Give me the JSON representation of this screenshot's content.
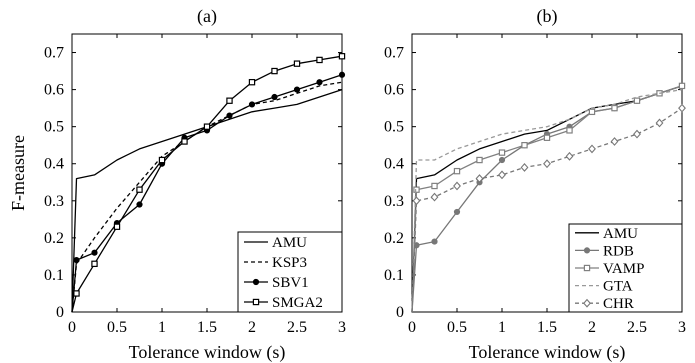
{
  "chart_data": [
    {
      "type": "line",
      "title": "(a)",
      "xlabel": "Tolerance window (s)",
      "ylabel": "F-measure",
      "xlim": [
        0,
        3
      ],
      "ylim": [
        0,
        0.75
      ],
      "xticks": [
        0,
        0.5,
        1,
        1.5,
        2,
        2.5,
        3
      ],
      "xtick_labels": [
        "0",
        "0.5",
        "1",
        "1.5",
        "2",
        "2.5",
        "3"
      ],
      "yticks": [
        0,
        0.1,
        0.2,
        0.3,
        0.4,
        0.5,
        0.6,
        0.7
      ],
      "ytick_labels": [
        "0",
        "0.1",
        "0.2",
        "0.3",
        "0.4",
        "0.5",
        "0.6",
        "0.7"
      ],
      "grid": false,
      "legend_position": "bottom-right",
      "series": [
        {
          "name": "AMU",
          "color": "#000000",
          "dash": "solid",
          "marker": "none",
          "x": [
            0,
            0.05,
            0.25,
            0.5,
            0.75,
            1.0,
            1.25,
            1.5,
            1.75,
            2.0,
            2.25,
            2.5,
            2.75,
            3.0
          ],
          "y": [
            0,
            0.36,
            0.37,
            0.41,
            0.44,
            0.46,
            0.48,
            0.5,
            0.52,
            0.54,
            0.55,
            0.56,
            0.58,
            0.6
          ]
        },
        {
          "name": "KSP3",
          "color": "#000000",
          "dash": "dashed",
          "marker": "none",
          "x": [
            0,
            0.05,
            0.25,
            0.5,
            0.75,
            1.0,
            1.25,
            1.5,
            1.75,
            2.0,
            2.25,
            2.5,
            2.75,
            3.0
          ],
          "y": [
            0,
            0.13,
            0.2,
            0.28,
            0.35,
            0.42,
            0.46,
            0.5,
            0.53,
            0.56,
            0.57,
            0.59,
            0.61,
            0.62
          ]
        },
        {
          "name": "SBV1",
          "color": "#000000",
          "dash": "solid",
          "marker": "dot",
          "x": [
            0,
            0.05,
            0.25,
            0.5,
            0.75,
            1.0,
            1.25,
            1.5,
            1.75,
            2.0,
            2.25,
            2.5,
            2.75,
            3.0
          ],
          "y": [
            0,
            0.14,
            0.16,
            0.24,
            0.29,
            0.4,
            0.47,
            0.49,
            0.53,
            0.56,
            0.58,
            0.6,
            0.62,
            0.64
          ]
        },
        {
          "name": "SMGA2",
          "color": "#000000",
          "dash": "solid",
          "marker": "square",
          "x": [
            0,
            0.05,
            0.25,
            0.5,
            0.75,
            1.0,
            1.25,
            1.5,
            1.75,
            2.0,
            2.25,
            2.5,
            2.75,
            3.0
          ],
          "y": [
            0,
            0.05,
            0.13,
            0.23,
            0.33,
            0.41,
            0.46,
            0.5,
            0.57,
            0.62,
            0.65,
            0.67,
            0.68,
            0.69
          ]
        }
      ]
    },
    {
      "type": "line",
      "title": "(b)",
      "xlabel": "Tolerance window (s)",
      "ylabel": "",
      "xlim": [
        0,
        3
      ],
      "ylim": [
        0,
        0.75
      ],
      "xticks": [
        0,
        0.5,
        1,
        1.5,
        2,
        2.5,
        3
      ],
      "xtick_labels": [
        "0",
        "0.5",
        "1",
        "1.5",
        "2",
        "2.5",
        "3"
      ],
      "yticks": [
        0,
        0.1,
        0.2,
        0.3,
        0.4,
        0.5,
        0.6,
        0.7
      ],
      "ytick_labels": [
        "0",
        "0.1",
        "0.2",
        "0.3",
        "0.4",
        "0.5",
        "0.6",
        "0.7"
      ],
      "grid": false,
      "legend_position": "bottom-right",
      "series": [
        {
          "name": "AMU",
          "color": "#000000",
          "dash": "solid",
          "marker": "none",
          "x": [
            0,
            0.05,
            0.25,
            0.5,
            0.75,
            1.0,
            1.25,
            1.5,
            1.75,
            2.0,
            2.25,
            2.5,
            2.75,
            3.0
          ],
          "y": [
            0,
            0.36,
            0.37,
            0.41,
            0.44,
            0.46,
            0.48,
            0.49,
            0.52,
            0.55,
            0.56,
            0.57,
            0.59,
            0.61
          ]
        },
        {
          "name": "RDB",
          "color": "#777777",
          "dash": "solid",
          "marker": "dot",
          "x": [
            0,
            0.05,
            0.25,
            0.5,
            0.75,
            1.0,
            1.25,
            1.5,
            1.75,
            2.0,
            2.25,
            2.5,
            2.75,
            3.0
          ],
          "y": [
            0,
            0.18,
            0.19,
            0.27,
            0.35,
            0.41,
            0.45,
            0.48,
            0.5,
            0.54,
            0.55,
            0.57,
            0.59,
            0.61
          ]
        },
        {
          "name": "VAMP",
          "color": "#808080",
          "dash": "solid",
          "marker": "square",
          "x": [
            0,
            0.05,
            0.25,
            0.5,
            0.75,
            1.0,
            1.25,
            1.5,
            1.75,
            2.0,
            2.25,
            2.5,
            2.75,
            3.0
          ],
          "y": [
            0,
            0.33,
            0.34,
            0.38,
            0.41,
            0.43,
            0.45,
            0.47,
            0.49,
            0.54,
            0.55,
            0.57,
            0.59,
            0.61
          ]
        },
        {
          "name": "GTA",
          "color": "#999999",
          "dash": "dashed",
          "marker": "none",
          "x": [
            0,
            0.05,
            0.25,
            0.5,
            0.75,
            1.0,
            1.25,
            1.5,
            1.75,
            2.0,
            2.25,
            2.5,
            2.75,
            3.0
          ],
          "y": [
            0,
            0.41,
            0.41,
            0.44,
            0.46,
            0.48,
            0.49,
            0.5,
            0.52,
            0.55,
            0.56,
            0.58,
            0.59,
            0.6
          ]
        },
        {
          "name": "CHR",
          "color": "#777777",
          "dash": "dashed",
          "marker": "diamond",
          "x": [
            0,
            0.05,
            0.25,
            0.5,
            0.75,
            1.0,
            1.25,
            1.5,
            1.75,
            2.0,
            2.25,
            2.5,
            2.75,
            3.0
          ],
          "y": [
            0,
            0.3,
            0.31,
            0.34,
            0.36,
            0.37,
            0.39,
            0.4,
            0.42,
            0.44,
            0.46,
            0.48,
            0.51,
            0.55
          ]
        }
      ]
    }
  ]
}
